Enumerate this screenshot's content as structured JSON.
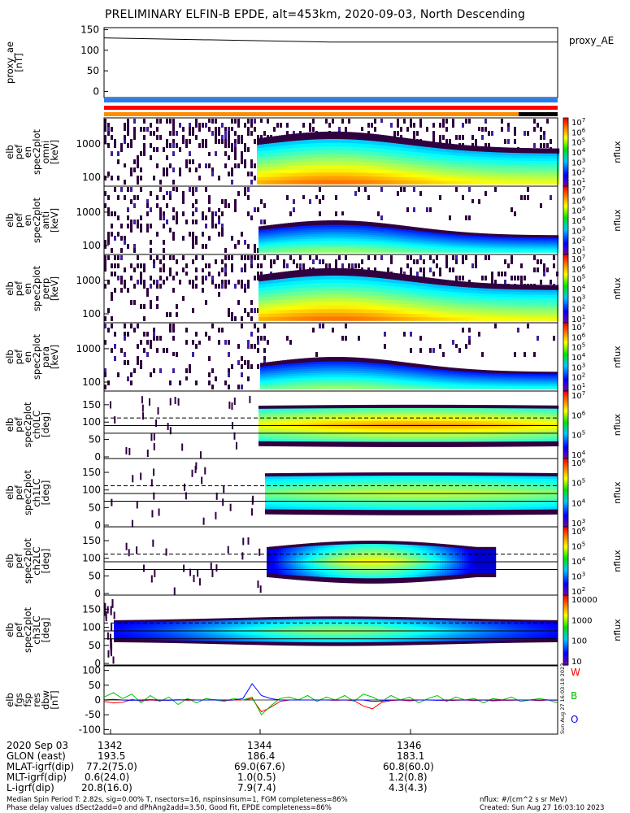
{
  "title": "PRELIMINARY ELFIN-B EPDE, alt=453km, 2020-09-03, North Descending",
  "proxy_panel": {
    "ylabel": [
      "proxy_ae",
      "[nT]"
    ],
    "legend": "proxy_AE",
    "yticks": [
      "150",
      "100",
      "50",
      "0"
    ],
    "line_values": [
      130,
      120,
      120
    ]
  },
  "status_bars": {
    "colors": [
      "#1e7fff",
      "#ff0000",
      "#ff8c00"
    ],
    "last_segment": "#000000"
  },
  "spectra_panels": [
    {
      "ylabel": [
        "elb",
        "pef",
        "en",
        "spec2plot",
        "omni",
        "[keV]"
      ],
      "yticks": [
        "1000",
        "100"
      ],
      "cbar_label": "nflux",
      "cbar_ticks": [
        "10^7",
        "10^6",
        "10^5",
        "10^4",
        "10^3",
        "10^2",
        "10^1"
      ]
    },
    {
      "ylabel": [
        "elb",
        "pef",
        "en",
        "spec2plot",
        "anti",
        "[keV]"
      ],
      "yticks": [
        "1000",
        "100"
      ],
      "cbar_label": "nflux",
      "cbar_ticks": [
        "10^7",
        "10^6",
        "10^5",
        "10^4",
        "10^3",
        "10^2",
        "10^1"
      ]
    },
    {
      "ylabel": [
        "elb",
        "pef",
        "en",
        "spec2plot",
        "perp",
        "[keV]"
      ],
      "yticks": [
        "1000",
        "100"
      ],
      "cbar_label": "nflux",
      "cbar_ticks": [
        "10^7",
        "10^6",
        "10^5",
        "10^4",
        "10^3",
        "10^2",
        "10^1"
      ]
    },
    {
      "ylabel": [
        "elb",
        "pef",
        "en",
        "spec2plot",
        "para",
        "[keV]"
      ],
      "yticks": [
        "1000",
        "100"
      ],
      "cbar_label": "nflux",
      "cbar_ticks": [
        "10^7",
        "10^6",
        "10^5",
        "10^4",
        "10^3",
        "10^2",
        "10^1"
      ]
    }
  ],
  "pa_panels": [
    {
      "ylabel": [
        "elb",
        "pef",
        "spec2plot",
        "ch0LC",
        "[deg]"
      ],
      "yticks": [
        "150",
        "100",
        "50",
        "0"
      ],
      "cbar_label": "nflux",
      "cbar_ticks": [
        "10^7",
        "10^6",
        "10^5",
        "10^4"
      ]
    },
    {
      "ylabel": [
        "elb",
        "pef",
        "spec2plot",
        "ch1LC",
        "[deg]"
      ],
      "yticks": [
        "150",
        "100",
        "50",
        "0"
      ],
      "cbar_label": "nflux",
      "cbar_ticks": [
        "10^6",
        "10^5",
        "10^4",
        "10^3"
      ]
    },
    {
      "ylabel": [
        "elb",
        "pef",
        "spec2plot",
        "ch2LC",
        "[deg]"
      ],
      "yticks": [
        "150",
        "100",
        "50",
        "0"
      ],
      "cbar_label": "nflux",
      "cbar_ticks": [
        "10^6",
        "10^5",
        "10^4",
        "10^3",
        "10^2"
      ]
    },
    {
      "ylabel": [
        "elb",
        "pef",
        "spec2plot",
        "ch3LC",
        "[deg]"
      ],
      "yticks": [
        "150",
        "100",
        "50",
        "0"
      ],
      "cbar_label": "nflux",
      "cbar_ticks": [
        "10000",
        "1000",
        "100",
        "10"
      ]
    }
  ],
  "fgm_panel": {
    "ylabel": [
      "elb",
      "fgs",
      "fsp",
      "res",
      "dbw",
      "[nT]"
    ],
    "yticks": [
      "100",
      "50",
      "0",
      "-50",
      "-100"
    ],
    "legend": [
      {
        "label": "W",
        "color": "#ff0000"
      },
      {
        "label": "B",
        "color": "#00c000"
      },
      {
        "label": "O",
        "color": "#0000ff"
      }
    ],
    "series": [
      {
        "name": "W",
        "color": "#ff0000",
        "values": [
          -5,
          -10,
          -8,
          2,
          -3,
          0,
          -2,
          0,
          1,
          -1,
          0,
          0,
          1,
          -2,
          0,
          0,
          5,
          -40,
          -25,
          -5,
          0,
          0,
          0,
          0,
          0,
          -1,
          0,
          -2,
          -20,
          -30,
          -8,
          -2,
          0,
          -3,
          0,
          0,
          0,
          -2,
          -1,
          0,
          -2,
          0,
          -3,
          -1,
          -1,
          0,
          0,
          -2,
          0,
          -1
        ]
      },
      {
        "name": "B",
        "color": "#00c000",
        "values": [
          10,
          25,
          5,
          20,
          -10,
          15,
          -5,
          10,
          -15,
          5,
          -10,
          5,
          0,
          -5,
          5,
          0,
          10,
          -50,
          -20,
          5,
          10,
          0,
          15,
          -5,
          10,
          0,
          15,
          -5,
          20,
          10,
          -5,
          15,
          0,
          10,
          -10,
          5,
          15,
          -5,
          10,
          0,
          5,
          -10,
          5,
          0,
          10,
          -5,
          0,
          5,
          0,
          -10
        ]
      },
      {
        "name": "O",
        "color": "#0000ff",
        "values": [
          0,
          2,
          0,
          -1,
          0,
          1,
          0,
          -1,
          0,
          1,
          0,
          0,
          0,
          0,
          0,
          5,
          55,
          15,
          5,
          0,
          0,
          0,
          0,
          0,
          0,
          0,
          0,
          0,
          0,
          -5,
          -3,
          0,
          0,
          0,
          0,
          0,
          -1,
          0,
          0,
          0,
          0,
          0,
          0,
          0,
          0,
          0,
          0,
          0,
          0,
          0
        ]
      }
    ]
  },
  "xaxis": {
    "rows": [
      [
        "2020 Sep 03",
        "1342",
        "1344",
        "1346"
      ],
      [
        "GLON (east)",
        "193.5",
        "186.4",
        "183.1"
      ],
      [
        "MLAT-igrf(dip)",
        "77.2(75.0)",
        "69.0(67.6)",
        "60.8(60.0)"
      ],
      [
        "MLT-igrf(dip)",
        "0.6(24.0)",
        "1.0(0.5)",
        "1.2(0.8)"
      ],
      [
        "L-igrf(dip)",
        "20.8(16.0)",
        "7.9(7.4)",
        "4.3(4.3)"
      ]
    ]
  },
  "footer": {
    "line1": "Median Spin Period T: 2.82s, sig=0.00% T, nsectors=16, nspinsinsum=1, FGM completeness=86%",
    "line2": "Phase delay values dSect2add=0 and dPhAng2add=3.50, Good Fit, EPDE completeness=86%",
    "units": "nflux: #/(cm^2 s sr MeV)",
    "created": "Created: Sun Aug 27 16:03:10 2023",
    "stamp": "Sun Aug 27 16:03:10 2023"
  },
  "chart_data": [
    {
      "type": "line",
      "title": "PRELIMINARY ELFIN-B EPDE, alt=453km, 2020-09-03, North Descending",
      "ylabel": "proxy_ae [nT]",
      "series": [
        {
          "name": "proxy_AE",
          "values": [
            130,
            120,
            120
          ]
        }
      ],
      "ylim": [
        -15,
        155
      ]
    },
    {
      "type": "heatmap",
      "ylabel": "elb pef en spec2plot omni [keV]",
      "ylim_log": [
        60,
        7000
      ],
      "colorbar": "nflux",
      "onset_time_frac": 0.24
    },
    {
      "type": "heatmap",
      "ylabel": "elb pef en spec2plot anti [keV]",
      "ylim_log": [
        60,
        7000
      ],
      "colorbar": "nflux",
      "onset_time_frac": 0.24
    },
    {
      "type": "heatmap",
      "ylabel": "elb pef en spec2plot perp [keV]",
      "ylim_log": [
        60,
        7000
      ],
      "colorbar": "nflux",
      "onset_time_frac": 0.24
    },
    {
      "type": "heatmap",
      "ylabel": "elb pef en spec2plot para [keV]",
      "ylim_log": [
        60,
        7000
      ],
      "colorbar": "nflux",
      "onset_time_frac": 0.25
    },
    {
      "type": "heatmap",
      "ylabel": "elb pef spec2plot ch0LC [deg]",
      "ylim": [
        0,
        180
      ],
      "colorbar": "nflux",
      "lc_lines": [
        68,
        112
      ],
      "onset_time_frac": 0.24
    },
    {
      "type": "heatmap",
      "ylabel": "elb pef spec2plot ch1LC [deg]",
      "ylim": [
        0,
        180
      ],
      "colorbar": "nflux",
      "lc_lines": [
        68,
        112
      ],
      "onset_time_frac": 0.24
    },
    {
      "type": "heatmap",
      "ylabel": "elb pef spec2plot ch2LC [deg]",
      "ylim": [
        0,
        180
      ],
      "colorbar": "nflux",
      "lc_lines": [
        68,
        112
      ],
      "onset_time_frac": 0.25
    },
    {
      "type": "heatmap",
      "ylabel": "elb pef spec2plot ch3LC [deg]",
      "ylim": [
        0,
        180
      ],
      "colorbar": "nflux",
      "lc_lines": [
        68,
        112
      ],
      "onset_time_frac": 0.0
    },
    {
      "type": "line",
      "ylabel": "elb fgs fsp res dbw [nT]",
      "ylim": [
        -110,
        110
      ],
      "series": [
        {
          "name": "W"
        },
        {
          "name": "B"
        },
        {
          "name": "O"
        }
      ]
    }
  ]
}
